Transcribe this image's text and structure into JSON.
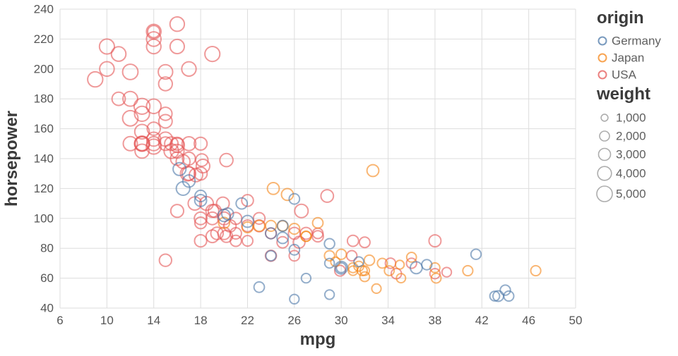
{
  "chart_data": {
    "type": "scatter",
    "title": "",
    "xlabel": "mpg",
    "ylabel": "horsepower",
    "xlim": [
      6,
      50
    ],
    "ylim": [
      40,
      240
    ],
    "xticks": [
      6,
      10,
      14,
      18,
      22,
      26,
      30,
      34,
      38,
      42,
      46,
      50
    ],
    "yticks": [
      40,
      60,
      80,
      100,
      120,
      140,
      160,
      180,
      200,
      220,
      240
    ],
    "grid": true,
    "grid_color": "#dddddd",
    "mark": {
      "shape": "open-circle",
      "stroke_width": 2,
      "opacity": 0.6
    },
    "legend": {
      "position": "right",
      "color": {
        "title": "origin",
        "entries": [
          {
            "label": "Germany",
            "color": "#4c78a8"
          },
          {
            "label": "Japan",
            "color": "#f58518"
          },
          {
            "label": "USA",
            "color": "#e45756"
          }
        ]
      },
      "size": {
        "title": "weight",
        "swatch_color": "#999999",
        "entries": [
          {
            "label": "1,000",
            "value": 1000
          },
          {
            "label": "2,000",
            "value": 2000
          },
          {
            "label": "3,000",
            "value": 3000
          },
          {
            "label": "4,000",
            "value": 4000
          },
          {
            "label": "5,000",
            "value": 5000
          }
        ]
      }
    },
    "columns": [
      "mpg",
      "horsepower",
      "weight",
      "origin"
    ],
    "points": [
      [
        18,
        130,
        3504,
        "USA"
      ],
      [
        15,
        165,
        3693,
        "USA"
      ],
      [
        18,
        150,
        3436,
        "USA"
      ],
      [
        16,
        150,
        3433,
        "USA"
      ],
      [
        17,
        140,
        3449,
        "USA"
      ],
      [
        15,
        198,
        4341,
        "USA"
      ],
      [
        14,
        220,
        4354,
        "USA"
      ],
      [
        14,
        215,
        4312,
        "USA"
      ],
      [
        14,
        225,
        4425,
        "USA"
      ],
      [
        15,
        190,
        3850,
        "USA"
      ],
      [
        15,
        170,
        3563,
        "USA"
      ],
      [
        14,
        160,
        3609,
        "USA"
      ],
      [
        15,
        150,
        3761,
        "USA"
      ],
      [
        14,
        225,
        3086,
        "USA"
      ],
      [
        10,
        215,
        4615,
        "USA"
      ],
      [
        10,
        200,
        4376,
        "USA"
      ],
      [
        11,
        210,
        4382,
        "USA"
      ],
      [
        9,
        193,
        4732,
        "USA"
      ],
      [
        21,
        90,
        2648,
        "USA"
      ],
      [
        28,
        90,
        2264,
        "USA"
      ],
      [
        19,
        88,
        3302,
        "USA"
      ],
      [
        16,
        215,
        4209,
        "USA"
      ],
      [
        17,
        200,
        4274,
        "USA"
      ],
      [
        19,
        210,
        4633,
        "USA"
      ],
      [
        16,
        230,
        4278,
        "USA"
      ],
      [
        14,
        175,
        4385,
        "USA"
      ],
      [
        14,
        153,
        4034,
        "USA"
      ],
      [
        13,
        175,
        5140,
        "USA"
      ],
      [
        12,
        167,
        4906,
        "USA"
      ],
      [
        13,
        170,
        4654,
        "USA"
      ],
      [
        12,
        180,
        4499,
        "USA"
      ],
      [
        13,
        150,
        4699,
        "USA"
      ],
      [
        13,
        145,
        4055,
        "USA"
      ],
      [
        12,
        198,
        4952,
        "USA"
      ],
      [
        13,
        158,
        4382,
        "USA"
      ],
      [
        13,
        150,
        4464,
        "USA"
      ],
      [
        14,
        148,
        4657,
        "USA"
      ],
      [
        14,
        150,
        4077,
        "USA"
      ],
      [
        13,
        150,
        3940,
        "USA"
      ],
      [
        11,
        180,
        3664,
        "USA"
      ],
      [
        12,
        150,
        4135,
        "USA"
      ],
      [
        16,
        105,
        3439,
        "USA"
      ],
      [
        18,
        100,
        3288,
        "USA"
      ],
      [
        22,
        95,
        2833,
        "USA"
      ],
      [
        18,
        97,
        2774,
        "USA"
      ],
      [
        23,
        95,
        2904,
        "USA"
      ],
      [
        19,
        100,
        3282,
        "USA"
      ],
      [
        20,
        90,
        3211,
        "USA"
      ],
      [
        21,
        100,
        2934,
        "USA"
      ],
      [
        24,
        75,
        2542,
        "USA"
      ],
      [
        26,
        75,
        2265,
        "USA"
      ],
      [
        20.5,
        95,
        3155,
        "USA"
      ],
      [
        19.4,
        90,
        3210,
        "USA"
      ],
      [
        20.2,
        88,
        3060,
        "USA"
      ],
      [
        17.5,
        110,
        3620,
        "USA"
      ],
      [
        19.2,
        105,
        3535,
        "USA"
      ],
      [
        18.1,
        139,
        3205,
        "USA"
      ],
      [
        15.5,
        145,
        4380,
        "USA"
      ],
      [
        16.5,
        138,
        3955,
        "USA"
      ],
      [
        15.5,
        150,
        3755,
        "USA"
      ],
      [
        18.5,
        110,
        3907,
        "USA"
      ],
      [
        16,
        149,
        4335,
        "USA"
      ],
      [
        17.6,
        129,
        3725,
        "USA"
      ],
      [
        20.2,
        139,
        3570,
        "USA"
      ],
      [
        19.9,
        110,
        3365,
        "USA"
      ],
      [
        16.9,
        130,
        4360,
        "USA"
      ],
      [
        18.2,
        135,
        3830,
        "USA"
      ],
      [
        26.6,
        105,
        3725,
        "USA"
      ],
      [
        28.8,
        115,
        3245,
        "USA"
      ],
      [
        25,
        84,
        2635,
        "USA"
      ],
      [
        27,
        90,
        2950,
        "USA"
      ],
      [
        38,
        85,
        3015,
        "USA"
      ],
      [
        38,
        63,
        2125,
        "USA"
      ],
      [
        39,
        64,
        1875,
        "USA"
      ],
      [
        34.2,
        70,
        2200,
        "USA"
      ],
      [
        36,
        70,
        2125,
        "USA"
      ],
      [
        31,
        85,
        2575,
        "USA"
      ],
      [
        30.9,
        75,
        2230,
        "USA"
      ],
      [
        28,
        88,
        2605,
        "USA"
      ],
      [
        26.4,
        84,
        2875,
        "USA"
      ],
      [
        22,
        112,
        2835,
        "USA"
      ],
      [
        23,
        100,
        2789,
        "USA"
      ],
      [
        32,
        84,
        2295,
        "USA"
      ],
      [
        29.9,
        65,
        2380,
        "USA"
      ],
      [
        34.7,
        63,
        2215,
        "USA"
      ],
      [
        24,
        90,
        2408,
        "USA"
      ],
      [
        19,
        105,
        3459,
        "USA"
      ],
      [
        15,
        72,
        3158,
        "USA"
      ],
      [
        16,
        140,
        3735,
        "USA"
      ],
      [
        17,
        150,
        3940,
        "USA"
      ],
      [
        15,
        153,
        4135,
        "USA"
      ],
      [
        20,
        100,
        3329,
        "USA"
      ],
      [
        17,
        130,
        3840,
        "USA"
      ],
      [
        16,
        145,
        3880,
        "USA"
      ],
      [
        18,
        85,
        3070,
        "USA"
      ],
      [
        21,
        85,
        2587,
        "USA"
      ],
      [
        22,
        85,
        2310,
        "USA"
      ],
      [
        26,
        90,
        2914,
        "USA"
      ],
      [
        24,
        95,
        2372,
        "Japan"
      ],
      [
        27,
        88,
        2130,
        "Japan"
      ],
      [
        27,
        88,
        2065,
        "Japan"
      ],
      [
        25,
        95,
        2228,
        "Japan"
      ],
      [
        31,
        65,
        1773,
        "Japan"
      ],
      [
        35,
        69,
        1613,
        "Japan"
      ],
      [
        20,
        97,
        2506,
        "Japan"
      ],
      [
        22,
        94,
        2379,
        "Japan"
      ],
      [
        29,
        75,
        2171,
        "Japan"
      ],
      [
        31,
        67,
        1950,
        "Japan"
      ],
      [
        32,
        65,
        1836,
        "Japan"
      ],
      [
        26,
        93,
        2391,
        "Japan"
      ],
      [
        33,
        53,
        1795,
        "Japan"
      ],
      [
        23,
        95,
        2515,
        "Japan"
      ],
      [
        32,
        61,
        1950,
        "Japan"
      ],
      [
        33.5,
        70,
        1945,
        "Japan"
      ],
      [
        24.2,
        120,
        2930,
        "Japan"
      ],
      [
        31.5,
        68,
        2045,
        "Japan"
      ],
      [
        34.1,
        65,
        1975,
        "Japan"
      ],
      [
        31.8,
        65,
        2020,
        "Japan"
      ],
      [
        40.8,
        65,
        2110,
        "Japan"
      ],
      [
        46.6,
        65,
        2110,
        "Japan"
      ],
      [
        35.1,
        60,
        1760,
        "Japan"
      ],
      [
        32.4,
        72,
        2205,
        "Japan"
      ],
      [
        30,
        76,
        2155,
        "Japan"
      ],
      [
        32.7,
        132,
        2910,
        "Japan"
      ],
      [
        25.4,
        116,
        2900,
        "Japan"
      ],
      [
        38.1,
        60,
        1968,
        "Japan"
      ],
      [
        38,
        67,
        1995,
        "Japan"
      ],
      [
        29.5,
        71,
        1825,
        "Japan"
      ],
      [
        28,
        97,
        2265,
        "Japan"
      ],
      [
        36,
        74,
        1980,
        "Japan"
      ],
      [
        26,
        46,
        1835,
        "Germany"
      ],
      [
        25,
        87,
        2672,
        "Germany"
      ],
      [
        24,
        90,
        2430,
        "Germany"
      ],
      [
        25,
        95,
        2375,
        "Germany"
      ],
      [
        26,
        113,
        2234,
        "Germany"
      ],
      [
        30,
        67,
        1950,
        "Germany"
      ],
      [
        30,
        67,
        3250,
        "Germany"
      ],
      [
        27,
        60,
        1834,
        "Germany"
      ],
      [
        23,
        54,
        2254,
        "Germany"
      ],
      [
        16.2,
        133,
        3410,
        "Germany"
      ],
      [
        17,
        125,
        3140,
        "Germany"
      ],
      [
        21.5,
        110,
        2600,
        "Germany"
      ],
      [
        18,
        115,
        2694,
        "Germany"
      ],
      [
        29,
        83,
        2219,
        "Germany"
      ],
      [
        26,
        79,
        2255,
        "Germany"
      ],
      [
        29,
        70,
        1937,
        "Germany"
      ],
      [
        43.1,
        48,
        1985,
        "Germany"
      ],
      [
        44.3,
        48,
        2085,
        "Germany"
      ],
      [
        43.4,
        48,
        2335,
        "Germany"
      ],
      [
        41.5,
        76,
        2144,
        "Germany"
      ],
      [
        44,
        52,
        2130,
        "Germany"
      ],
      [
        36.4,
        67,
        2950,
        "Germany"
      ],
      [
        31.5,
        71,
        1990,
        "Germany"
      ],
      [
        20.3,
        103,
        2830,
        "Germany"
      ],
      [
        16.5,
        120,
        3820,
        "Germany"
      ],
      [
        18,
        112,
        2933,
        "Germany"
      ],
      [
        22,
        98,
        2945,
        "Germany"
      ],
      [
        20,
        102,
        3150,
        "Germany"
      ],
      [
        24,
        75,
        2158,
        "Germany"
      ],
      [
        29,
        49,
        1867,
        "Germany"
      ],
      [
        37.3,
        69,
        2130,
        "Germany"
      ]
    ]
  }
}
